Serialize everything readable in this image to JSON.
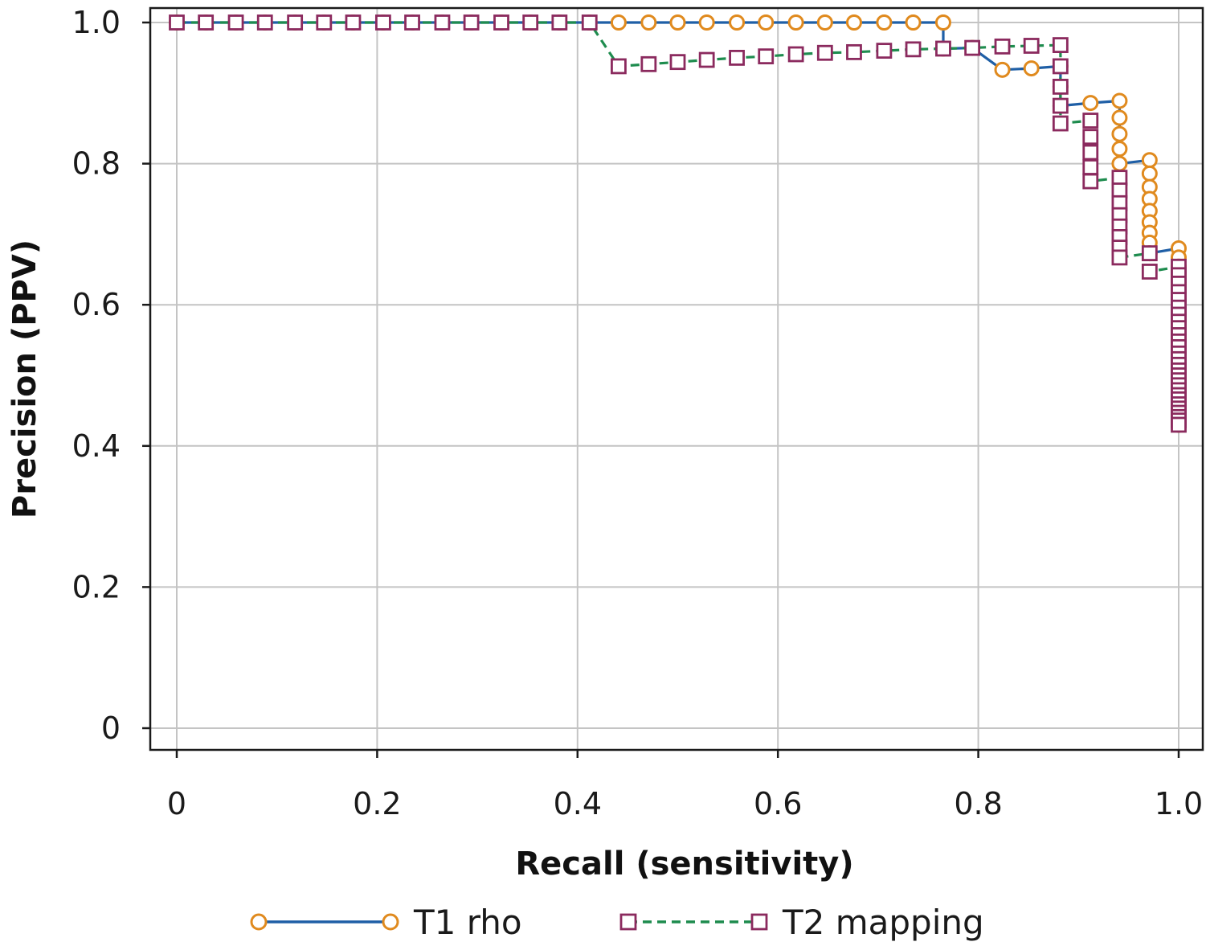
{
  "chart_data": {
    "type": "line",
    "title": "",
    "xlabel": "Recall (sensitivity)",
    "ylabel": "Precision (PPV)",
    "xlim": [
      -0.027,
      1.023
    ],
    "ylim": [
      -0.03,
      1.0
    ],
    "xticks": [
      {
        "value": 0,
        "label": "0"
      },
      {
        "value": 0.2,
        "label": "0.2"
      },
      {
        "value": 0.4,
        "label": "0.4"
      },
      {
        "value": 0.6,
        "label": "0.6"
      },
      {
        "value": 0.8,
        "label": "0.8"
      },
      {
        "value": 1.0,
        "label": "1.0"
      }
    ],
    "yticks": [
      {
        "value": 0,
        "label": "0"
      },
      {
        "value": 0.2,
        "label": "0.2"
      },
      {
        "value": 0.4,
        "label": "0.4"
      },
      {
        "value": 0.6,
        "label": "0.6"
      },
      {
        "value": 0.8,
        "label": "0.8"
      },
      {
        "value": 1.0,
        "label": "1.0"
      }
    ],
    "grid": true,
    "legend_position": "bottom",
    "series": [
      {
        "name": "T1 rho",
        "line_color": "#1f5fa6",
        "marker_color": "#e08a1e",
        "marker": "circle",
        "line_style": "solid",
        "points": [
          [
            0,
            1.0
          ],
          [
            0.029,
            1.0
          ],
          [
            0.059,
            1.0
          ],
          [
            0.088,
            1.0
          ],
          [
            0.118,
            1.0
          ],
          [
            0.147,
            1.0
          ],
          [
            0.176,
            1.0
          ],
          [
            0.206,
            1.0
          ],
          [
            0.235,
            1.0
          ],
          [
            0.265,
            1.0
          ],
          [
            0.294,
            1.0
          ],
          [
            0.324,
            1.0
          ],
          [
            0.353,
            1.0
          ],
          [
            0.382,
            1.0
          ],
          [
            0.412,
            1.0
          ],
          [
            0.441,
            1.0
          ],
          [
            0.471,
            1.0
          ],
          [
            0.5,
            1.0
          ],
          [
            0.529,
            1.0
          ],
          [
            0.559,
            1.0
          ],
          [
            0.588,
            1.0
          ],
          [
            0.618,
            1.0
          ],
          [
            0.647,
            1.0
          ],
          [
            0.676,
            1.0
          ],
          [
            0.706,
            1.0
          ],
          [
            0.735,
            1.0
          ],
          [
            0.765,
            1.0
          ],
          [
            0.765,
            0.963
          ],
          [
            0.794,
            0.964
          ],
          [
            0.824,
            0.933
          ],
          [
            0.853,
            0.935
          ],
          [
            0.882,
            0.938
          ],
          [
            0.882,
            0.909
          ],
          [
            0.882,
            0.882
          ],
          [
            0.912,
            0.886
          ],
          [
            0.941,
            0.889
          ],
          [
            0.941,
            0.865
          ],
          [
            0.941,
            0.842
          ],
          [
            0.941,
            0.821
          ],
          [
            0.941,
            0.8
          ],
          [
            0.971,
            0.805
          ],
          [
            0.971,
            0.786
          ],
          [
            0.971,
            0.767
          ],
          [
            0.971,
            0.75
          ],
          [
            0.971,
            0.733
          ],
          [
            0.971,
            0.717
          ],
          [
            0.971,
            0.702
          ],
          [
            0.971,
            0.688
          ],
          [
            0.971,
            0.673
          ],
          [
            1.0,
            0.68
          ],
          [
            1.0,
            0.667
          ],
          [
            1.0,
            0.654
          ],
          [
            1.0,
            0.642
          ],
          [
            1.0,
            0.63
          ],
          [
            1.0,
            0.618
          ],
          [
            1.0,
            0.607
          ],
          [
            1.0,
            0.596
          ],
          [
            1.0,
            0.586
          ],
          [
            1.0,
            0.576
          ],
          [
            1.0,
            0.567
          ],
          [
            1.0,
            0.557
          ],
          [
            1.0,
            0.548
          ],
          [
            1.0,
            0.54
          ],
          [
            1.0,
            0.531
          ],
          [
            1.0,
            0.523
          ],
          [
            1.0,
            0.515
          ],
          [
            1.0,
            0.507
          ],
          [
            1.0,
            0.5
          ],
          [
            1.0,
            0.493
          ],
          [
            1.0,
            0.486
          ],
          [
            1.0,
            0.479
          ],
          [
            1.0,
            0.472
          ],
          [
            1.0,
            0.466
          ],
          [
            1.0,
            0.459
          ],
          [
            1.0,
            0.453
          ],
          [
            1.0,
            0.447
          ],
          [
            1.0,
            0.441
          ],
          [
            1.0,
            0.436
          ],
          [
            1.0,
            0.43
          ]
        ]
      },
      {
        "name": "T2 mapping",
        "line_color": "#1e8c4e",
        "marker_color": "#8b2a5e",
        "marker": "square",
        "line_style": "dashed",
        "points": [
          [
            0,
            1.0
          ],
          [
            0.029,
            1.0
          ],
          [
            0.059,
            1.0
          ],
          [
            0.088,
            1.0
          ],
          [
            0.118,
            1.0
          ],
          [
            0.147,
            1.0
          ],
          [
            0.176,
            1.0
          ],
          [
            0.206,
            1.0
          ],
          [
            0.235,
            1.0
          ],
          [
            0.265,
            1.0
          ],
          [
            0.294,
            1.0
          ],
          [
            0.324,
            1.0
          ],
          [
            0.353,
            1.0
          ],
          [
            0.382,
            1.0
          ],
          [
            0.412,
            1.0
          ],
          [
            0.441,
            0.938
          ],
          [
            0.471,
            0.941
          ],
          [
            0.5,
            0.944
          ],
          [
            0.529,
            0.947
          ],
          [
            0.559,
            0.95
          ],
          [
            0.588,
            0.952
          ],
          [
            0.618,
            0.955
          ],
          [
            0.647,
            0.957
          ],
          [
            0.676,
            0.958
          ],
          [
            0.706,
            0.96
          ],
          [
            0.735,
            0.962
          ],
          [
            0.765,
            0.963
          ],
          [
            0.794,
            0.964
          ],
          [
            0.824,
            0.966
          ],
          [
            0.853,
            0.967
          ],
          [
            0.882,
            0.968
          ],
          [
            0.882,
            0.938
          ],
          [
            0.882,
            0.909
          ],
          [
            0.882,
            0.882
          ],
          [
            0.882,
            0.857
          ],
          [
            0.912,
            0.861
          ],
          [
            0.912,
            0.838
          ],
          [
            0.912,
            0.816
          ],
          [
            0.912,
            0.795
          ],
          [
            0.912,
            0.775
          ],
          [
            0.941,
            0.78
          ],
          [
            0.941,
            0.762
          ],
          [
            0.941,
            0.744
          ],
          [
            0.941,
            0.727
          ],
          [
            0.941,
            0.711
          ],
          [
            0.941,
            0.696
          ],
          [
            0.941,
            0.681
          ],
          [
            0.941,
            0.667
          ],
          [
            0.971,
            0.673
          ],
          [
            0.971,
            0.647
          ],
          [
            1.0,
            0.654
          ],
          [
            1.0,
            0.642
          ],
          [
            1.0,
            0.63
          ],
          [
            1.0,
            0.618
          ],
          [
            1.0,
            0.607
          ],
          [
            1.0,
            0.596
          ],
          [
            1.0,
            0.586
          ],
          [
            1.0,
            0.576
          ],
          [
            1.0,
            0.567
          ],
          [
            1.0,
            0.557
          ],
          [
            1.0,
            0.548
          ],
          [
            1.0,
            0.54
          ],
          [
            1.0,
            0.531
          ],
          [
            1.0,
            0.523
          ],
          [
            1.0,
            0.515
          ],
          [
            1.0,
            0.507
          ],
          [
            1.0,
            0.5
          ],
          [
            1.0,
            0.493
          ],
          [
            1.0,
            0.486
          ],
          [
            1.0,
            0.479
          ],
          [
            1.0,
            0.472
          ],
          [
            1.0,
            0.466
          ],
          [
            1.0,
            0.459
          ],
          [
            1.0,
            0.453
          ],
          [
            1.0,
            0.447
          ],
          [
            1.0,
            0.441
          ],
          [
            1.0,
            0.436
          ],
          [
            1.0,
            0.43
          ]
        ]
      }
    ]
  }
}
